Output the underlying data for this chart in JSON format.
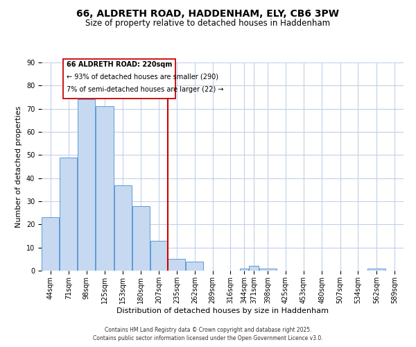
{
  "title": "66, ALDRETH ROAD, HADDENHAM, ELY, CB6 3PW",
  "subtitle": "Size of property relative to detached houses in Haddenham",
  "xlabel": "Distribution of detached houses by size in Haddenham",
  "ylabel": "Number of detached properties",
  "bar_color": "#c6d9f1",
  "bar_edge_color": "#5b9bd5",
  "background_color": "#ffffff",
  "plot_bg_color": "#ffffff",
  "grid_color": "#c0d0e8",
  "vline_x": 220,
  "vline_color": "#cc0000",
  "categories": [
    "44sqm",
    "71sqm",
    "98sqm",
    "125sqm",
    "153sqm",
    "180sqm",
    "207sqm",
    "235sqm",
    "262sqm",
    "289sqm",
    "316sqm",
    "344sqm",
    "371sqm",
    "398sqm",
    "425sqm",
    "453sqm",
    "480sqm",
    "507sqm",
    "534sqm",
    "562sqm",
    "589sqm"
  ],
  "bin_width": 27,
  "bin_edges": [
    30.5,
    57.5,
    84.5,
    111.5,
    139.5,
    166.5,
    193.5,
    220.5,
    247.5,
    274.5,
    301.5,
    328.5,
    342.5,
    357.5,
    384.5,
    411.5,
    438.5,
    466.5,
    493.5,
    520.5,
    548.5,
    575.5
  ],
  "values": [
    23,
    49,
    74,
    71,
    37,
    28,
    13,
    5,
    4,
    0,
    0,
    1,
    2,
    1,
    0,
    0,
    0,
    0,
    0,
    1,
    0
  ],
  "ylim": [
    0,
    90
  ],
  "yticks": [
    0,
    10,
    20,
    30,
    40,
    50,
    60,
    70,
    80,
    90
  ],
  "ann_line1": "66 ALDRETH ROAD: 220sqm",
  "ann_line2": "← 93% of detached houses are smaller (290)",
  "ann_line3": "7% of semi-detached houses are larger (22) →",
  "footer_line1": "Contains HM Land Registry data © Crown copyright and database right 2025.",
  "footer_line2": "Contains public sector information licensed under the Open Government Licence v3.0.",
  "title_fontsize": 10,
  "subtitle_fontsize": 8.5,
  "axis_label_fontsize": 8,
  "tick_fontsize": 7,
  "ann_fontsize": 7,
  "footer_fontsize": 5.5
}
